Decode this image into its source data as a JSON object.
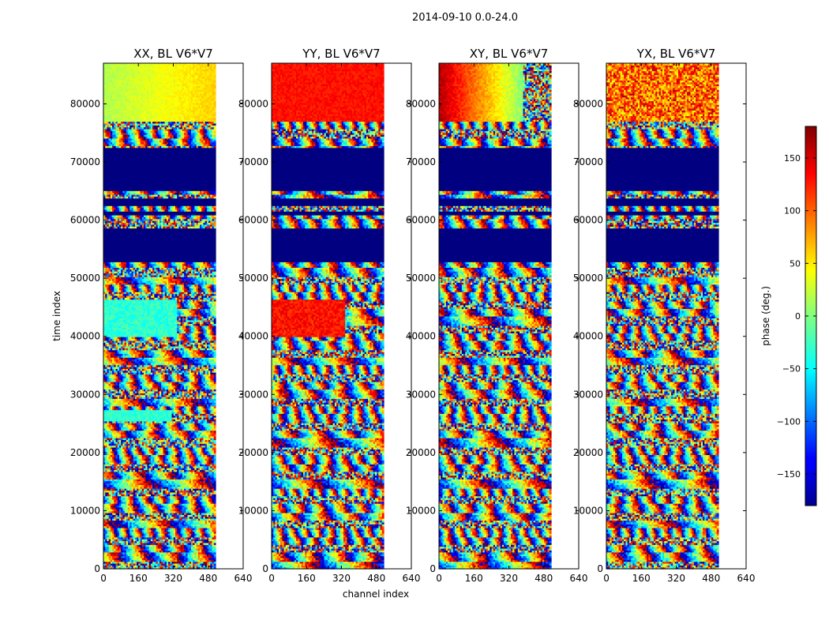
{
  "figure": {
    "suptitle": "2014-09-10 0.0-24.0"
  },
  "chart_data": {
    "type": "heatmap",
    "xlabel": "channel index",
    "ylabel": "time index",
    "xlim": [
      0,
      640
    ],
    "ylim": [
      0,
      87000
    ],
    "data_xmax": 512,
    "x_ticks": [
      0,
      160,
      320,
      480,
      640
    ],
    "y_ticks": [
      0,
      10000,
      20000,
      30000,
      40000,
      50000,
      60000,
      70000,
      80000
    ],
    "panels": [
      {
        "title": "XX, BL V6*V7",
        "style": "xx"
      },
      {
        "title": "YY, BL V6*V7",
        "style": "yy"
      },
      {
        "title": "XY, BL V6*V7",
        "style": "xy"
      },
      {
        "title": "YX, BL V6*V7",
        "style": "yx"
      }
    ],
    "blank_rows": [
      [
        53000,
        58500
      ],
      [
        61000,
        61500
      ],
      [
        62500,
        63800
      ],
      [
        65000,
        72500
      ]
    ],
    "colorbar": {
      "label": "phase (deg.)",
      "range": [
        -180,
        180
      ],
      "ticks": [
        -150,
        -100,
        -50,
        0,
        50,
        100,
        150
      ],
      "tick_labels": [
        "−150",
        "−100",
        "−50",
        "0",
        "50",
        "100",
        "150"
      ]
    }
  }
}
